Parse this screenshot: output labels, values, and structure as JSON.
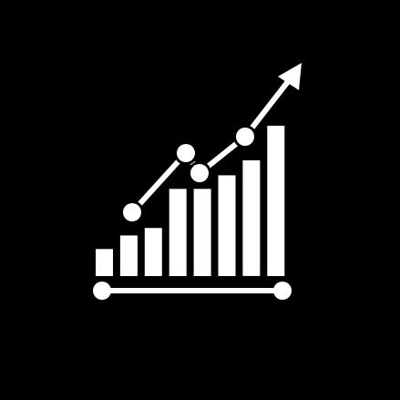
{
  "icon": {
    "name": "growth-chart-icon",
    "background_color": "#000000",
    "foreground_color": "#ffffff",
    "bar_levels": [
      0.18,
      0.27,
      0.32,
      0.58,
      0.58,
      0.67,
      0.77,
      1.0
    ],
    "trend_levels": [
      0.42,
      0.8,
      0.68,
      0.94,
      1.55
    ]
  }
}
